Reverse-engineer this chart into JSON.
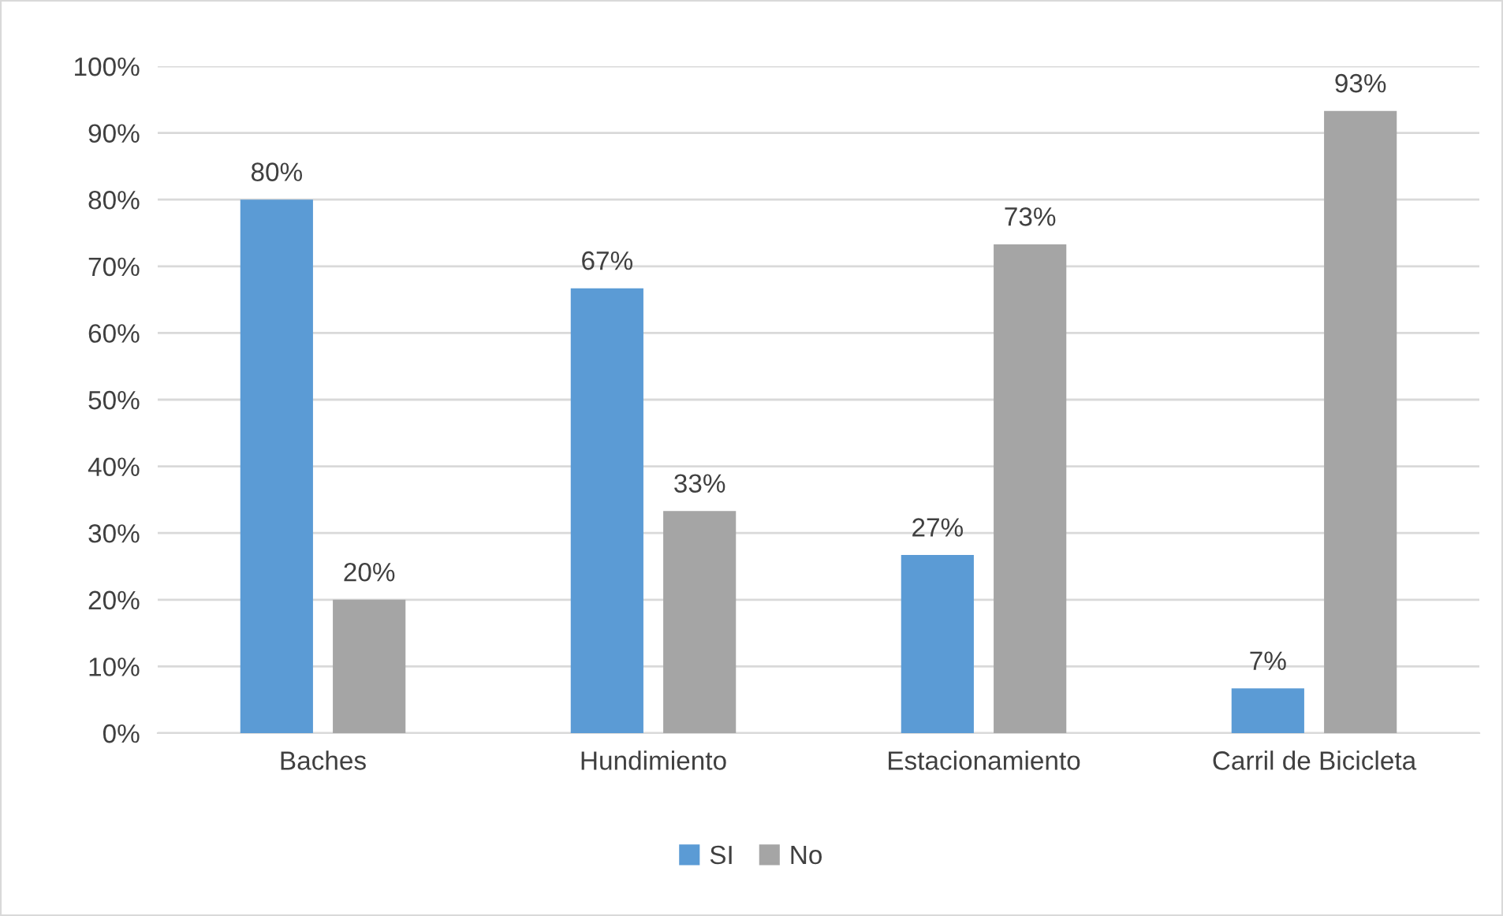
{
  "chart_data": {
    "type": "bar",
    "categories": [
      "Baches",
      "Hundimiento",
      "Estacionamiento",
      "Carril de Bicicleta"
    ],
    "series": [
      {
        "name": "SI",
        "color": "#5b9bd5",
        "values": [
          80,
          66.7,
          26.7,
          6.7
        ],
        "value_labels": [
          "80%",
          "67%",
          "27%",
          "7%"
        ]
      },
      {
        "name": "No",
        "color": "#a5a5a5",
        "values": [
          20,
          33.3,
          73.3,
          93.3
        ],
        "value_labels": [
          "20%",
          "33%",
          "73%",
          "93%"
        ]
      }
    ],
    "ylim": [
      0,
      100
    ],
    "yticks": [
      {
        "value": 0,
        "label": "0%"
      },
      {
        "value": 10,
        "label": "10%"
      },
      {
        "value": 20,
        "label": "20%"
      },
      {
        "value": 30,
        "label": "30%"
      },
      {
        "value": 40,
        "label": "40%"
      },
      {
        "value": 50,
        "label": "50%"
      },
      {
        "value": 60,
        "label": "60%"
      },
      {
        "value": 70,
        "label": "70%"
      },
      {
        "value": 80,
        "label": "80%"
      },
      {
        "value": 90,
        "label": "90%"
      },
      {
        "value": 100,
        "label": "100%"
      }
    ],
    "grid": "y",
    "legend": "bottom"
  }
}
